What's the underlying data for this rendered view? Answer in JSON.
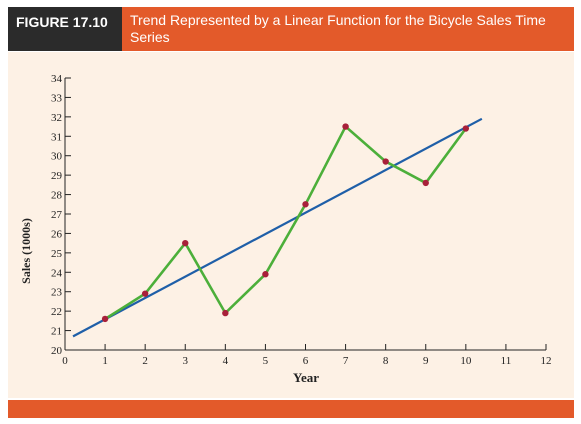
{
  "figure": {
    "label": "FIGURE 17.10",
    "title": "Trend Represented by a Linear Function for the Bicycle Sales Time Series"
  },
  "colors": {
    "header": "#e35a2a",
    "label_bg": "#2b2b2b",
    "plot_bg": "#fdf1e5",
    "series": "#4caf3a",
    "trend": "#1f5fa8",
    "points": "#a8203a"
  },
  "chart_data": {
    "type": "line",
    "xlabel": "Year",
    "ylabel": "Sales (1000s)",
    "xlim": [
      0,
      12
    ],
    "ylim": [
      20,
      34
    ],
    "xticks": [
      0,
      1,
      2,
      3,
      4,
      5,
      6,
      7,
      8,
      9,
      10,
      11,
      12
    ],
    "yticks": [
      20,
      21,
      22,
      23,
      24,
      25,
      26,
      27,
      28,
      29,
      30,
      31,
      32,
      33,
      34
    ],
    "grid": false,
    "series": [
      {
        "x": [
          1,
          2,
          3,
          4,
          5,
          6,
          7,
          8,
          9,
          10
        ],
        "values": [
          21.6,
          22.9,
          25.5,
          21.9,
          23.9,
          27.5,
          31.5,
          29.7,
          28.6,
          31.4
        ]
      }
    ],
    "trend_line": {
      "x": [
        0.2,
        10.4
      ],
      "y": [
        20.7,
        31.9
      ]
    }
  }
}
